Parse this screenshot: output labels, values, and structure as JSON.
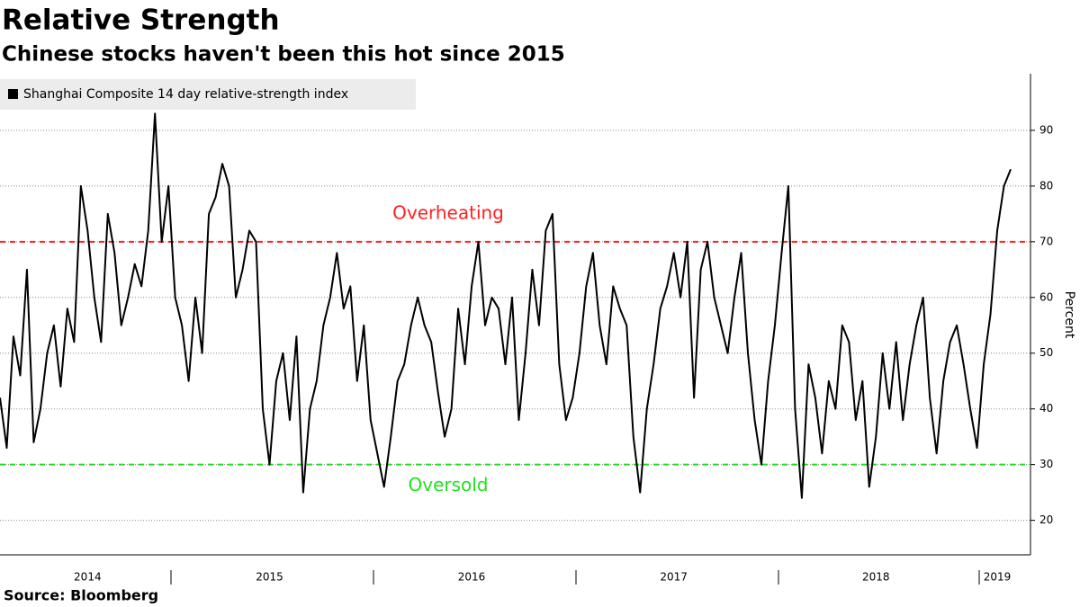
{
  "chart_data": {
    "type": "line",
    "title": "Relative Strength",
    "subtitle": "Chinese stocks haven't been this hot since 2015",
    "y_label": "Percent",
    "source": "Source: Bloomberg",
    "categories": [
      null,
      null,
      null,
      null,
      null,
      null,
      null,
      null,
      null,
      null,
      null,
      null,
      null,
      "2014",
      null,
      null,
      null,
      null,
      null,
      null,
      null,
      null,
      null,
      null,
      null,
      null,
      null,
      null,
      null,
      null,
      null,
      null,
      null,
      null,
      null,
      null,
      null,
      null,
      null,
      null,
      "2015",
      null,
      null,
      null,
      null,
      null,
      null,
      null,
      null,
      null,
      null,
      null,
      null,
      null,
      null,
      null,
      null,
      null,
      null,
      null,
      null,
      null,
      null,
      null,
      null,
      null,
      null,
      null,
      null,
      null,
      "2016",
      null,
      null,
      null,
      null,
      null,
      null,
      null,
      null,
      null,
      null,
      null,
      null,
      null,
      null,
      null,
      null,
      null,
      null,
      null,
      null,
      null,
      null,
      null,
      null,
      null,
      null,
      null,
      null,
      null,
      "2017",
      null,
      null,
      null,
      null,
      null,
      null,
      null,
      null,
      null,
      null,
      null,
      null,
      null,
      null,
      null,
      null,
      null,
      null,
      null,
      null,
      null,
      null,
      null,
      null,
      null,
      null,
      null,
      null,
      null,
      "2018",
      null,
      null,
      null,
      null,
      null,
      null,
      null,
      null,
      null,
      null,
      null,
      null,
      null,
      null,
      null,
      null,
      null,
      "2019",
      null,
      null
    ],
    "series": [
      {
        "name": "Shanghai Composite 14 day relative-strength index",
        "color": "#000000",
        "values": [
          42,
          33,
          53,
          46,
          65,
          34,
          40,
          50,
          55,
          44,
          58,
          52,
          80,
          72,
          60,
          52,
          75,
          68,
          55,
          60,
          66,
          62,
          72,
          93,
          70,
          80,
          60,
          55,
          45,
          60,
          50,
          75,
          78,
          84,
          80,
          60,
          65,
          72,
          70,
          40,
          30,
          45,
          50,
          38,
          53,
          25,
          40,
          45,
          55,
          60,
          68,
          58,
          62,
          45,
          55,
          38,
          32,
          26,
          35,
          45,
          48,
          55,
          60,
          55,
          52,
          43,
          35,
          40,
          58,
          48,
          62,
          70,
          55,
          60,
          58,
          48,
          60,
          38,
          50,
          65,
          55,
          72,
          75,
          48,
          38,
          42,
          50,
          62,
          68,
          55,
          48,
          62,
          58,
          55,
          35,
          25,
          40,
          48,
          58,
          62,
          68,
          60,
          70,
          42,
          65,
          70,
          60,
          55,
          50,
          60,
          68,
          50,
          38,
          30,
          45,
          55,
          68,
          80,
          40,
          24,
          48,
          42,
          32,
          45,
          40,
          55,
          52,
          38,
          45,
          26,
          35,
          50,
          40,
          52,
          38,
          48,
          55,
          60,
          42,
          32,
          45,
          52,
          55,
          48,
          40,
          33,
          48,
          57,
          72,
          80,
          83
        ]
      }
    ],
    "reference_lines": [
      {
        "value": 70,
        "label": "Overheating",
        "color": "#ff2020"
      },
      {
        "value": 30,
        "label": "Oversold",
        "color": "#22e022"
      }
    ],
    "ylim": [
      13.8,
      100
    ],
    "yticks": [
      20,
      30,
      40,
      50,
      60,
      70,
      80,
      90
    ],
    "grid": true
  }
}
